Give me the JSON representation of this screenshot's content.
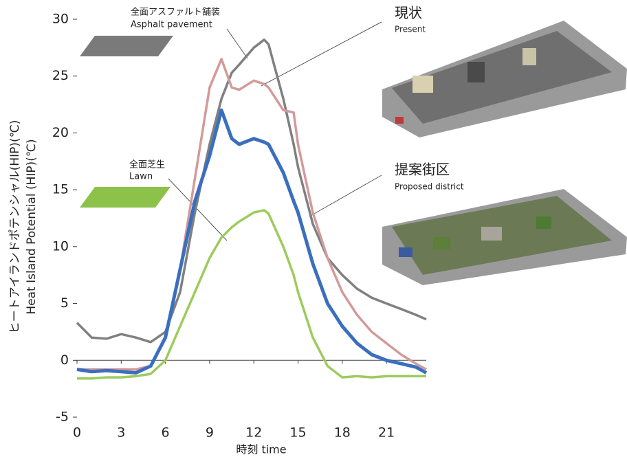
{
  "chart_data": {
    "type": "line",
    "x_label": "時刻  time",
    "y_label": "ヒートアイランドポテンシャル(HIP)(℃)",
    "y_label_en": "Heat Island Potential (HIP)(℃)",
    "x": [
      0,
      1,
      2,
      3,
      4,
      5,
      6,
      7,
      8,
      9,
      9.8,
      10.5,
      11,
      12,
      12.7,
      13,
      14,
      14.7,
      15,
      16,
      17,
      18,
      19,
      20,
      21,
      22,
      23,
      23.7
    ],
    "xlim": [
      0,
      23.7
    ],
    "xticks": [
      0,
      3,
      6,
      9,
      12,
      15,
      18,
      21
    ],
    "ylim": [
      -5,
      30
    ],
    "yticks": [
      -5,
      0,
      5,
      10,
      15,
      20,
      25,
      30
    ],
    "series": [
      {
        "name": "全面アスファルト舗装",
        "name_en": "Asphalt pavement",
        "color": "#808080",
        "values": [
          3.3,
          2.0,
          1.9,
          2.3,
          2.0,
          1.6,
          2.5,
          6,
          13,
          19,
          23,
          25.3,
          26,
          27.5,
          28.2,
          27.8,
          23,
          19,
          17,
          12,
          9,
          7.5,
          6.3,
          5.5,
          5,
          4.5,
          4,
          3.6
        ]
      },
      {
        "name": "現状",
        "name_en": "Present",
        "color": "#d39a9a",
        "values": [
          -0.8,
          -0.8,
          -0.8,
          -0.8,
          -0.8,
          -0.5,
          2,
          8,
          16,
          24,
          26.5,
          24,
          23.8,
          24.6,
          24.3,
          24,
          22,
          21.8,
          19,
          13,
          9,
          6,
          4,
          2.5,
          1.5,
          0.5,
          -0.3,
          -0.8
        ]
      },
      {
        "name": "提案街区",
        "name_en": "Proposed district",
        "color": "#3b6fbe",
        "values": [
          -0.8,
          -1,
          -0.9,
          -1,
          -1.1,
          -0.5,
          2,
          8,
          14,
          18,
          22,
          19.5,
          19,
          19.5,
          19.2,
          19,
          16.5,
          14,
          13,
          8.5,
          5,
          3,
          1.5,
          0.5,
          0,
          -0.3,
          -0.6,
          -1.1
        ]
      },
      {
        "name": "全面芝生",
        "name_en": "Lawn",
        "color": "#9dcb5c",
        "values": [
          -1.6,
          -1.6,
          -1.5,
          -1.5,
          -1.4,
          -1.2,
          0,
          3,
          6,
          9,
          10.8,
          11.7,
          12.2,
          13,
          13.2,
          12.9,
          10,
          7.5,
          6,
          2,
          -0.5,
          -1.5,
          -1.4,
          -1.5,
          -1.4,
          -1.4,
          -1.4,
          -1.4
        ]
      }
    ]
  }
}
